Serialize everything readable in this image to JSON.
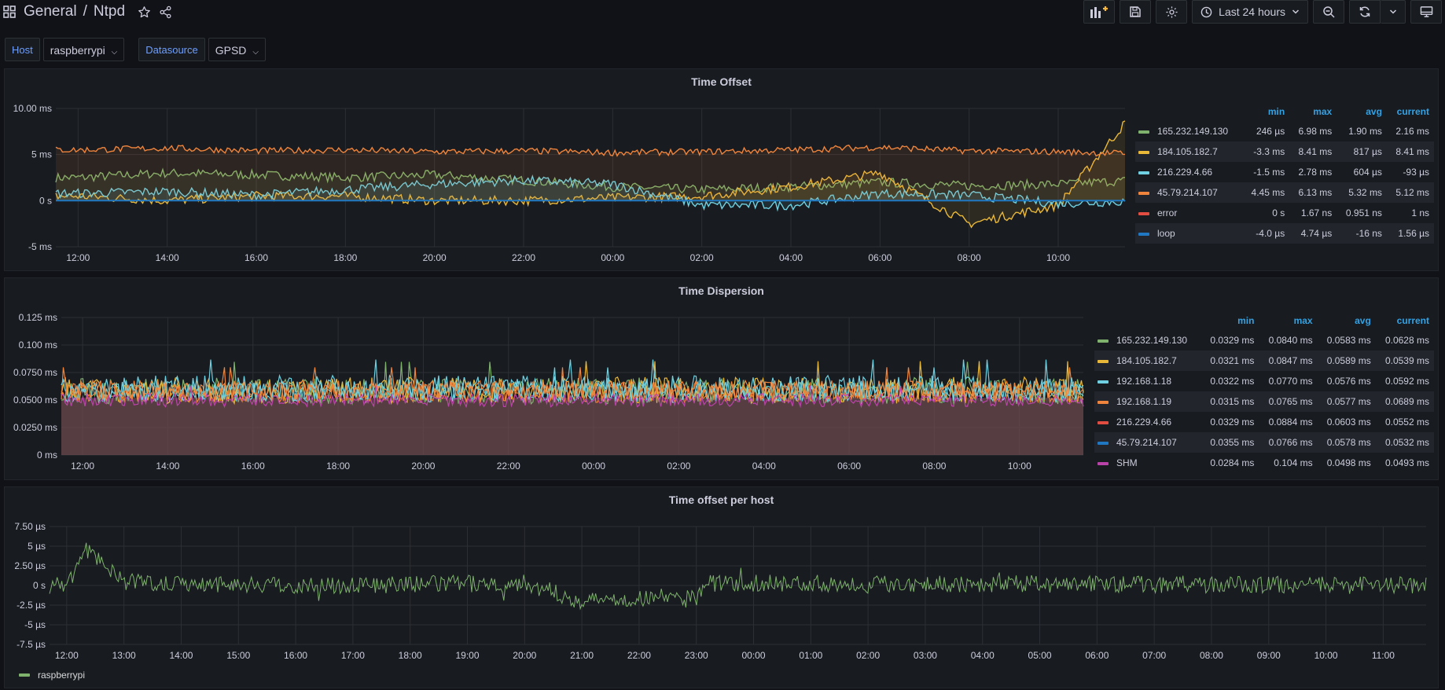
{
  "header": {
    "folder": "General",
    "separator": "/",
    "dashboard": "Ntpd",
    "time_range": "Last 24 hours"
  },
  "variables": [
    {
      "label": "Host",
      "value": "raspberrypi"
    },
    {
      "label": "Datasource",
      "value": "GPSD"
    }
  ],
  "colors": {
    "green": "#7eb26d",
    "yellow": "#eab839",
    "cyan": "#6ed0e0",
    "orange": "#ef843c",
    "red": "#e24d42",
    "blue": "#1f78c1",
    "magenta": "#ba43a9",
    "legend_header": "#33a2e5"
  },
  "panels": {
    "time_offset": {
      "title": "Time Offset",
      "legend_headers": [
        "min",
        "max",
        "avg",
        "current"
      ],
      "rows": [
        {
          "name": "165.232.149.130",
          "color": "#7eb26d",
          "min": "246 µs",
          "max": "6.98 ms",
          "avg": "1.90 ms",
          "current": "2.16 ms"
        },
        {
          "name": "184.105.182.7",
          "color": "#eab839",
          "min": "-3.3 ms",
          "max": "8.41 ms",
          "avg": "817 µs",
          "current": "8.41 ms"
        },
        {
          "name": "216.229.4.66",
          "color": "#6ed0e0",
          "min": "-1.5 ms",
          "max": "2.78 ms",
          "avg": "604 µs",
          "current": "-93 µs"
        },
        {
          "name": "45.79.214.107",
          "color": "#ef843c",
          "min": "4.45 ms",
          "max": "6.13 ms",
          "avg": "5.32 ms",
          "current": "5.12 ms"
        },
        {
          "name": "error",
          "color": "#e24d42",
          "min": "0 s",
          "max": "1.67 ns",
          "avg": "0.951 ns",
          "current": "1 ns"
        },
        {
          "name": "loop",
          "color": "#1f78c1",
          "min": "-4.0 µs",
          "max": "4.74 µs",
          "avg": "-16 ns",
          "current": "1.56 µs"
        }
      ]
    },
    "time_dispersion": {
      "title": "Time Dispersion",
      "legend_headers": [
        "min",
        "max",
        "avg",
        "current"
      ],
      "rows": [
        {
          "name": "165.232.149.130",
          "color": "#7eb26d",
          "min": "0.0329 ms",
          "max": "0.0840 ms",
          "avg": "0.0583 ms",
          "current": "0.0628 ms"
        },
        {
          "name": "184.105.182.7",
          "color": "#eab839",
          "min": "0.0321 ms",
          "max": "0.0847 ms",
          "avg": "0.0589 ms",
          "current": "0.0539 ms"
        },
        {
          "name": "192.168.1.18",
          "color": "#6ed0e0",
          "min": "0.0322 ms",
          "max": "0.0770 ms",
          "avg": "0.0576 ms",
          "current": "0.0592 ms"
        },
        {
          "name": "192.168.1.19",
          "color": "#ef843c",
          "min": "0.0315 ms",
          "max": "0.0765 ms",
          "avg": "0.0577 ms",
          "current": "0.0689 ms"
        },
        {
          "name": "216.229.4.66",
          "color": "#e24d42",
          "min": "0.0329 ms",
          "max": "0.0884 ms",
          "avg": "0.0603 ms",
          "current": "0.0552 ms"
        },
        {
          "name": "45.79.214.107",
          "color": "#1f78c1",
          "min": "0.0355 ms",
          "max": "0.0766 ms",
          "avg": "0.0578 ms",
          "current": "0.0532 ms"
        },
        {
          "name": "SHM",
          "color": "#ba43a9",
          "min": "0.0284 ms",
          "max": "0.104 ms",
          "avg": "0.0498 ms",
          "current": "0.0493 ms"
        }
      ]
    },
    "time_offset_per_host": {
      "title": "Time offset per host",
      "legend": [
        {
          "name": "raspberrypi",
          "color": "#7eb26d"
        }
      ]
    }
  },
  "chart_data": [
    {
      "type": "line",
      "title": "Time Offset",
      "y_ticks": [
        "10.00 ms",
        "5 ms",
        "0 s",
        "-5 ms"
      ],
      "ylim": [
        -5,
        10
      ],
      "x_ticks": [
        "12:00",
        "14:00",
        "16:00",
        "18:00",
        "20:00",
        "22:00",
        "00:00",
        "02:00",
        "04:00",
        "06:00",
        "08:00",
        "10:00"
      ],
      "grid": true,
      "series": [
        {
          "name": "165.232.149.130",
          "x": [
            "12:00",
            "14:00",
            "16:00",
            "18:00",
            "20:00",
            "22:00",
            "00:00",
            "02:00",
            "04:00",
            "06:00",
            "08:00",
            "10:00",
            "11:30"
          ],
          "values": [
            2.5,
            3,
            2.8,
            2.5,
            2.8,
            2.2,
            1.5,
            1.2,
            1.5,
            2.0,
            1.6,
            1.8,
            2.16
          ]
        },
        {
          "name": "184.105.182.7",
          "x": [
            "12:00",
            "14:00",
            "16:00",
            "18:00",
            "20:00",
            "22:00",
            "00:00",
            "02:00",
            "04:00",
            "06:00",
            "08:00",
            "10:00",
            "11:30"
          ],
          "values": [
            0.5,
            0,
            0.5,
            0.5,
            0,
            0,
            0.3,
            0.5,
            1.5,
            3,
            -2.5,
            -0.5,
            8.41
          ]
        },
        {
          "name": "216.229.4.66",
          "x": [
            "12:00",
            "14:00",
            "16:00",
            "18:00",
            "20:00",
            "22:00",
            "00:00",
            "02:00",
            "04:00",
            "06:00",
            "08:00",
            "10:00",
            "11:30"
          ],
          "values": [
            0.8,
            1,
            0.6,
            1.2,
            1.8,
            2.2,
            1.8,
            -0.5,
            -0.5,
            0.8,
            0.6,
            -0.3,
            -0.09
          ]
        },
        {
          "name": "45.79.214.107",
          "x": [
            "12:00",
            "14:00",
            "16:00",
            "18:00",
            "20:00",
            "22:00",
            "00:00",
            "02:00",
            "04:00",
            "06:00",
            "08:00",
            "10:00",
            "11:30"
          ],
          "values": [
            5.5,
            5.7,
            5.4,
            5.5,
            5.3,
            5.4,
            5.2,
            5.3,
            5.5,
            5.8,
            5.4,
            5.3,
            5.12
          ]
        },
        {
          "name": "error",
          "x": [
            "12:00",
            "11:30"
          ],
          "values": [
            0,
            0
          ]
        },
        {
          "name": "loop",
          "x": [
            "12:00",
            "11:30"
          ],
          "values": [
            0,
            0
          ]
        }
      ]
    },
    {
      "type": "line",
      "title": "Time Dispersion",
      "y_ticks": [
        "0.125 ms",
        "0.100 ms",
        "0.0750 ms",
        "0.0500 ms",
        "0.0250 ms",
        "0 ms"
      ],
      "ylim": [
        0,
        0.125
      ],
      "x_ticks": [
        "12:00",
        "14:00",
        "16:00",
        "18:00",
        "20:00",
        "22:00",
        "00:00",
        "02:00",
        "04:00",
        "06:00",
        "08:00",
        "10:00"
      ],
      "grid": true,
      "series": [
        {
          "name": "165.232.149.130",
          "base": 0.0583,
          "spread": 0.012
        },
        {
          "name": "184.105.182.7",
          "base": 0.0589,
          "spread": 0.012
        },
        {
          "name": "192.168.1.18",
          "base": 0.0576,
          "spread": 0.01
        },
        {
          "name": "192.168.1.19",
          "base": 0.0577,
          "spread": 0.01
        },
        {
          "name": "216.229.4.66",
          "base": 0.0603,
          "spread": 0.012
        },
        {
          "name": "45.79.214.107",
          "base": 0.0578,
          "spread": 0.01
        },
        {
          "name": "SHM",
          "base": 0.0498,
          "spread": 0.006
        }
      ]
    },
    {
      "type": "line",
      "title": "Time offset per host",
      "y_ticks": [
        "7.50 µs",
        "5 µs",
        "2.50 µs",
        "0 s",
        "-2.5 µs",
        "-5 µs",
        "-7.5 µs"
      ],
      "ylim": [
        -7.5,
        7.5
      ],
      "x_ticks": [
        "12:00",
        "13:00",
        "14:00",
        "15:00",
        "16:00",
        "17:00",
        "18:00",
        "19:00",
        "20:00",
        "21:00",
        "22:00",
        "23:00",
        "00:00",
        "01:00",
        "02:00",
        "03:00",
        "04:00",
        "05:00",
        "06:00",
        "07:00",
        "08:00",
        "09:00",
        "10:00",
        "11:00"
      ],
      "grid": true,
      "series": [
        {
          "name": "raspberrypi",
          "x": [
            "12:00",
            "12:20",
            "13:00",
            "16:00",
            "20:00",
            "21:00",
            "22:00",
            "23:00",
            "23:10",
            "06:00",
            "11:30"
          ],
          "values": [
            0,
            4.5,
            0.5,
            0,
            0.3,
            -2,
            -1.5,
            -1.5,
            0.3,
            0.2,
            0
          ]
        }
      ]
    }
  ]
}
